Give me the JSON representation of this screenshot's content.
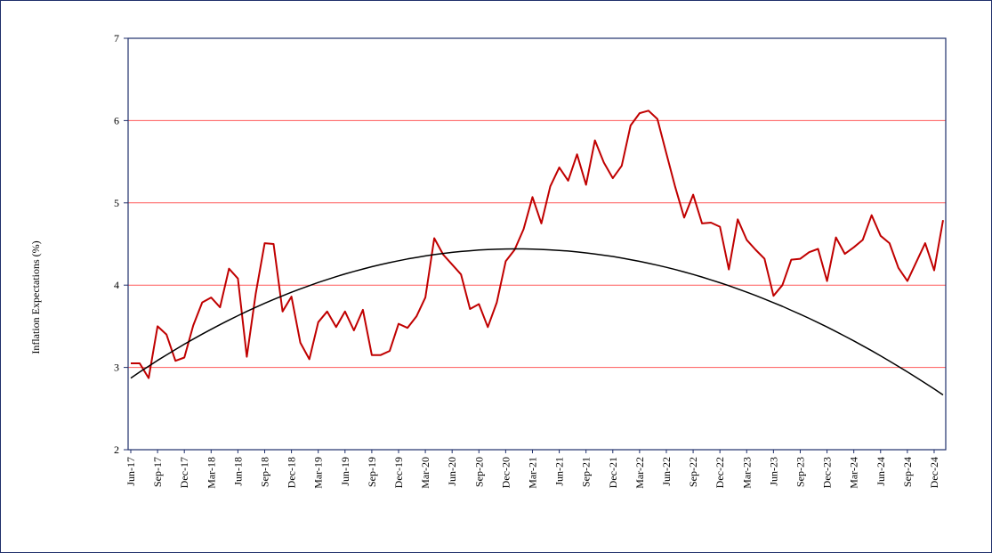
{
  "chart_data": {
    "type": "line",
    "ylabel": "Inflation  Expectations (%)",
    "xlabel": "",
    "title": "",
    "ylim": [
      2,
      7
    ],
    "yticks": [
      2,
      3,
      4,
      5,
      6,
      7
    ],
    "grid": true,
    "grid_color": "#ff5a5a",
    "series": [
      {
        "style": "observed",
        "color": "#c00000",
        "values": [
          3.05,
          3.05,
          2.87,
          3.5,
          3.4,
          3.08,
          3.12,
          3.51,
          3.79,
          3.85,
          3.73,
          4.2,
          4.08,
          3.13,
          3.9,
          4.51,
          4.5,
          3.68,
          3.86,
          3.3,
          3.1,
          3.55,
          3.68,
          3.49,
          3.68,
          3.45,
          3.7,
          3.15,
          3.15,
          3.2,
          3.53,
          3.48,
          3.62,
          3.85,
          4.57,
          4.37,
          4.25,
          4.13,
          3.71,
          3.77,
          3.49,
          3.79,
          4.29,
          4.43,
          4.68,
          5.07,
          4.75,
          5.2,
          5.43,
          5.27,
          5.59,
          5.22,
          5.76,
          5.49,
          5.3,
          5.45,
          5.94,
          6.09,
          6.12,
          6.02,
          5.6,
          5.19,
          4.82,
          5.1,
          4.75,
          4.76,
          4.71,
          4.19,
          4.8,
          4.55,
          4.43,
          4.32,
          3.87,
          4.0,
          4.31,
          4.32,
          4.4,
          4.44,
          4.05,
          4.58,
          4.38,
          4.46,
          4.55,
          4.85,
          4.6,
          4.51,
          4.21,
          4.05,
          4.28,
          4.51,
          4.18,
          4.79
        ]
      },
      {
        "style": "trend",
        "color": "#000000",
        "values": [
          2.87,
          2.944,
          3.015,
          3.085,
          3.152,
          3.218,
          3.282,
          3.344,
          3.405,
          3.463,
          3.52,
          3.576,
          3.629,
          3.681,
          3.731,
          3.779,
          3.826,
          3.87,
          3.913,
          3.955,
          3.994,
          4.032,
          4.068,
          4.103,
          4.136,
          4.167,
          4.196,
          4.224,
          4.25,
          4.274,
          4.297,
          4.318,
          4.337,
          4.355,
          4.371,
          4.385,
          4.398,
          4.409,
          4.418,
          4.426,
          4.432,
          4.436,
          4.439,
          4.44,
          4.44,
          4.438,
          4.434,
          4.429,
          4.422,
          4.414,
          4.404,
          4.392,
          4.379,
          4.364,
          4.348,
          4.33,
          4.31,
          4.289,
          4.266,
          4.242,
          4.216,
          4.189,
          4.16,
          4.13,
          4.098,
          4.064,
          4.029,
          3.993,
          3.955,
          3.915,
          3.874,
          3.831,
          3.787,
          3.742,
          3.694,
          3.646,
          3.596,
          3.544,
          3.491,
          3.436,
          3.38,
          3.322,
          3.263,
          3.203,
          3.141,
          3.077,
          3.012,
          2.946,
          2.878,
          2.809,
          2.738,
          2.666
        ]
      }
    ],
    "xticks": [
      "Jun-17",
      "Sep-17",
      "Dec-17",
      "Mar-18",
      "Jun-18",
      "Sep-18",
      "Dec-18",
      "Mar-19",
      "Jun-19",
      "Sep-19",
      "Dec-19",
      "Mar-20",
      "Jun-20",
      "Sep-20",
      "Dec-20",
      "Mar-21",
      "Jun-21",
      "Sep-21",
      "Dec-21",
      "Mar-22",
      "Jun-22",
      "Sep-22",
      "Dec-22",
      "Mar-23",
      "Jun-23",
      "Sep-23",
      "Dec-23",
      "Mar-24",
      "Jun-24",
      "Sep-24",
      "Dec-24"
    ]
  }
}
